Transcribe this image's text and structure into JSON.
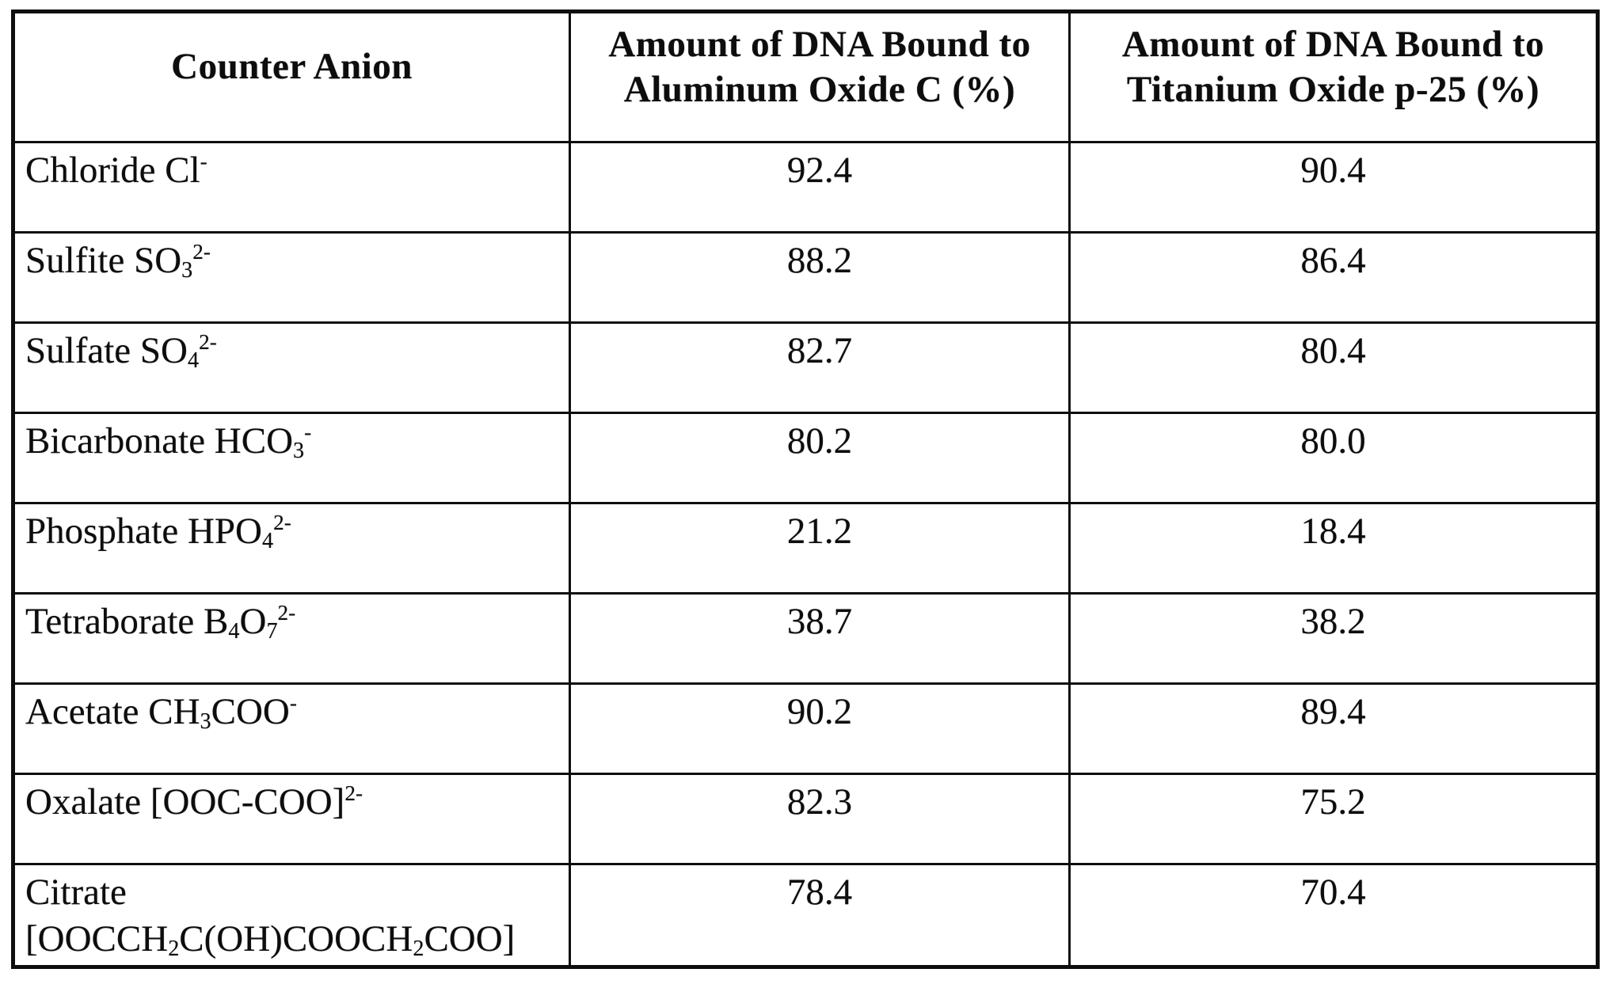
{
  "document": {
    "background_color": "#ffffff",
    "ink_color": "#0d0d0d"
  },
  "table": {
    "columns": [
      {
        "label": "Counter Anion"
      },
      {
        "label": "Amount of DNA Bound to Aluminum Oxide C (%)"
      },
      {
        "label": "Amount of DNA Bound to Titanium Oxide p-25 (%)"
      }
    ],
    "rows": [
      {
        "anion": [
          {
            "text": "Chloride Cl"
          },
          {
            "text": "-",
            "style": "sup"
          }
        ],
        "aluminum_oxide_c_pct": "92.4",
        "titanium_oxide_p25_pct": "90.4"
      },
      {
        "anion": [
          {
            "text": "Sulfite SO"
          },
          {
            "text": "3",
            "style": "sub"
          },
          {
            "text": "2-",
            "style": "sup"
          }
        ],
        "aluminum_oxide_c_pct": "88.2",
        "titanium_oxide_p25_pct": "86.4"
      },
      {
        "anion": [
          {
            "text": "Sulfate SO"
          },
          {
            "text": "4",
            "style": "sub"
          },
          {
            "text": "2-",
            "style": "sup"
          }
        ],
        "aluminum_oxide_c_pct": "82.7",
        "titanium_oxide_p25_pct": "80.4"
      },
      {
        "anion": [
          {
            "text": "Bicarbonate HCO"
          },
          {
            "text": "3",
            "style": "sub"
          },
          {
            "text": "-",
            "style": "sup"
          }
        ],
        "aluminum_oxide_c_pct": "80.2",
        "titanium_oxide_p25_pct": "80.0"
      },
      {
        "anion": [
          {
            "text": "Phosphate HPO"
          },
          {
            "text": "4",
            "style": "sub"
          },
          {
            "text": "2-",
            "style": "sup"
          }
        ],
        "aluminum_oxide_c_pct": "21.2",
        "titanium_oxide_p25_pct": "18.4"
      },
      {
        "anion": [
          {
            "text": "Tetraborate B"
          },
          {
            "text": "4",
            "style": "sub"
          },
          {
            "text": "O"
          },
          {
            "text": "7",
            "style": "sub"
          },
          {
            "text": "2-",
            "style": "sup"
          }
        ],
        "aluminum_oxide_c_pct": "38.7",
        "titanium_oxide_p25_pct": "38.2"
      },
      {
        "anion": [
          {
            "text": "Acetate CH"
          },
          {
            "text": "3",
            "style": "sub"
          },
          {
            "text": "COO"
          },
          {
            "text": "-",
            "style": "sup"
          }
        ],
        "aluminum_oxide_c_pct": "90.2",
        "titanium_oxide_p25_pct": "89.4"
      },
      {
        "anion": [
          {
            "text": "Oxalate [OOC-COO]"
          },
          {
            "text": "2-",
            "style": "sup"
          }
        ],
        "aluminum_oxide_c_pct": "82.3",
        "titanium_oxide_p25_pct": "75.2"
      },
      {
        "anion": [
          {
            "text": "Citrate"
          },
          {
            "style": "break"
          },
          {
            "text": "[OOCCH"
          },
          {
            "text": "2",
            "style": "sub"
          },
          {
            "text": "C(OH)COOCH"
          },
          {
            "text": "2",
            "style": "sub"
          },
          {
            "text": "COO]"
          }
        ],
        "aluminum_oxide_c_pct": "78.4",
        "titanium_oxide_p25_pct": "70.4"
      }
    ]
  }
}
